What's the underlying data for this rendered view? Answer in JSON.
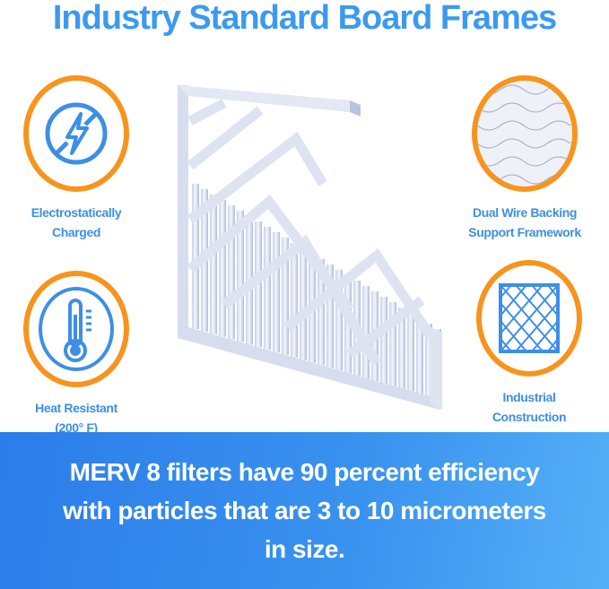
{
  "title": "Industry Standard Board Frames",
  "features": [
    {
      "label_line1": "Electrostatically",
      "label_line2": "Charged",
      "icon": "no-lightning-icon"
    },
    {
      "label_line1": "Dual Wire Backing",
      "label_line2": "Support Framework",
      "icon": "wire-mesh-icon"
    },
    {
      "label_line1": "Heat Resistant",
      "label_line2": "(200° F)",
      "icon": "thermometer-icon"
    },
    {
      "label_line1": "Industrial",
      "label_line2": "Construction",
      "icon": "grid-frame-icon"
    }
  ],
  "banner": {
    "text": "MERV 8 filters have 90 percent efficiency with particles that are 3 to 10 micrometers in size."
  },
  "colors": {
    "title": "#3b9af0",
    "ring": "#f7941d",
    "icon": "#3d8fe6",
    "banner": "#2b7de9"
  }
}
